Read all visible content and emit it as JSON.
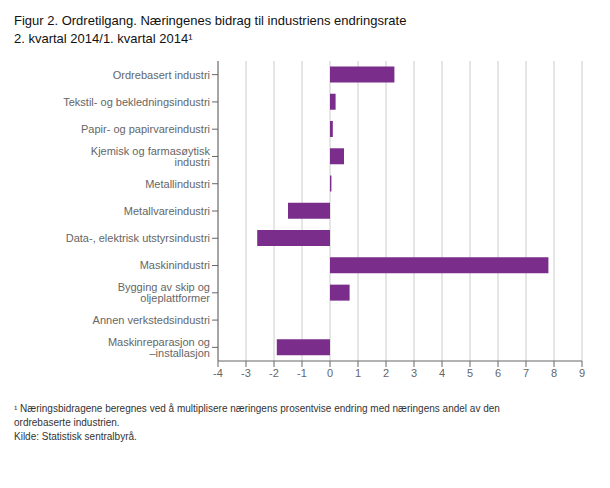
{
  "chart_data": {
    "type": "bar",
    "orientation": "horizontal",
    "title": "Figur 2. Ordretilgang. Næringenes bidrag til industriens endringsrate",
    "subtitle": "2. kvartal 2014/1. kvartal 2014¹",
    "categories": [
      "Ordrebasert industri",
      "Tekstil- og bekledningsindustri",
      "Papir- og papirvareindustri",
      "Kjemisk og farmasøytisk industri",
      "Metallindustri",
      "Metallvareindustri",
      "Data-, elektrisk utstyrsindustri",
      "Maskinindustri",
      "Bygging av skip og oljeplattformer",
      "Annen verkstedsindustri",
      "Maskinreparasjon og –installasjon"
    ],
    "values": [
      2.3,
      0.2,
      0.1,
      0.5,
      0.05,
      -1.5,
      -2.6,
      7.8,
      0.7,
      0.0,
      -1.9
    ],
    "color": "#7B2D8B",
    "xlim": [
      -4,
      9
    ],
    "xticks": [
      -4,
      -3,
      -2,
      -1,
      0,
      1,
      2,
      3,
      4,
      5,
      6,
      7,
      8,
      9
    ],
    "grid": true,
    "annotations": [
      "¹ Næringsbidragene beregnes ved å multiplisere næringens prosentvise endring med næringens andel av den",
      "ordrebaserte industrien.",
      "Kilde: Statistisk sentralbyrå."
    ]
  }
}
